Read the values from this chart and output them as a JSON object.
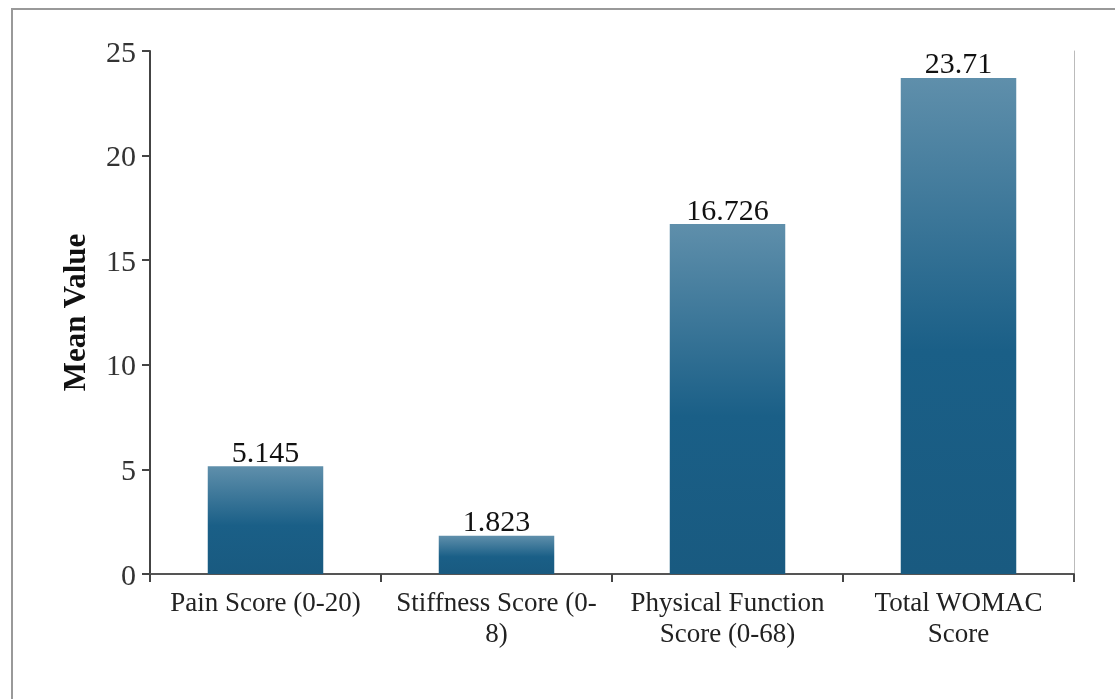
{
  "chart_data": {
    "type": "bar",
    "ylabel": "Mean Value",
    "categories": [
      "Pain Score (0-20)",
      "Stiffness Score (0-8)",
      "Physical Function Score (0-68)",
      "Total WOMAC Score"
    ],
    "values": [
      5.145,
      1.823,
      16.726,
      23.71
    ],
    "color": "#1a5f87",
    "ylim": [
      0,
      25
    ],
    "yticks": [
      0,
      5,
      10,
      15,
      20,
      25
    ],
    "data_labels": true
  }
}
